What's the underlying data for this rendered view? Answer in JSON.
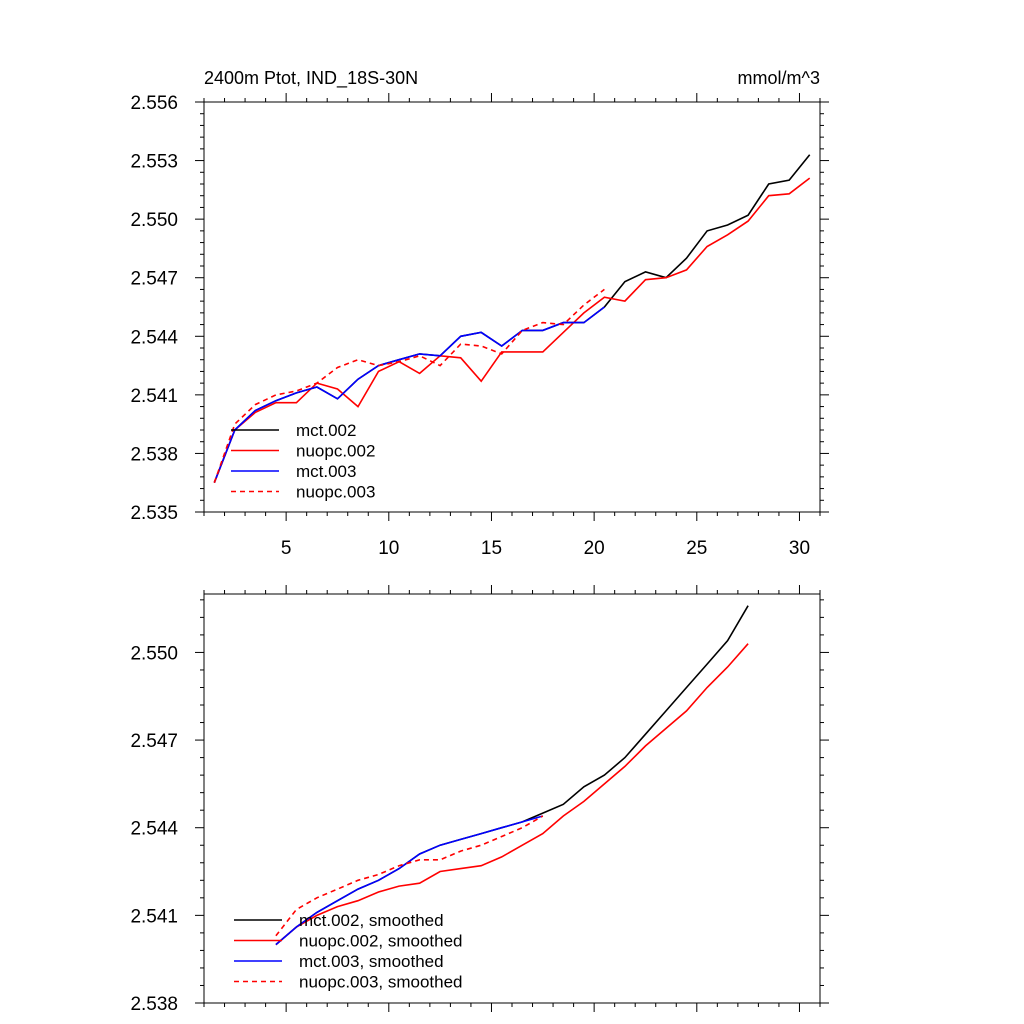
{
  "chart_data": [
    {
      "type": "line",
      "title": "2400m Ptot, IND_18S-30N",
      "units": "mmol/m^3",
      "xlabel": "",
      "ylabel": "",
      "xlim": [
        1,
        31
      ],
      "ylim": [
        2.535,
        2.556
      ],
      "xticks": [
        5,
        10,
        15,
        20,
        25,
        30
      ],
      "xtick_labels": [
        "5",
        "10",
        "15",
        "20",
        "25",
        "30"
      ],
      "yticks": [
        2.535,
        2.538,
        2.541,
        2.544,
        2.547,
        2.55,
        2.553,
        2.556
      ],
      "ytick_labels": [
        "2.535",
        "2.538",
        "2.541",
        "2.544",
        "2.547",
        "2.550",
        "2.553",
        "2.556"
      ],
      "legend_position": "bottom-left",
      "series": [
        {
          "name": "mct.002",
          "color": "#000000",
          "dash": "solid",
          "x": [
            1.5,
            2.5,
            3.5,
            4.5,
            5.5,
            6.5,
            7.5,
            8.5,
            9.5,
            10.5,
            11.5,
            12.5,
            13.5,
            14.5,
            15.5,
            16.5,
            17.5,
            18.5,
            19.5,
            20.5,
            21.5,
            22.5,
            23.5,
            24.5,
            25.5,
            26.5,
            27.5,
            28.5,
            29.5,
            30.5
          ],
          "values": [
            2.5365,
            2.5392,
            2.5402,
            2.5407,
            2.5411,
            2.5414,
            2.5408,
            2.5418,
            2.5425,
            2.5428,
            2.5431,
            2.543,
            2.544,
            2.5442,
            2.5435,
            2.5443,
            2.5443,
            2.5447,
            2.5447,
            2.5455,
            2.5468,
            2.5473,
            2.547,
            2.548,
            2.5494,
            2.5497,
            2.5502,
            2.5518,
            2.552,
            2.5533
          ]
        },
        {
          "name": "nuopc.002",
          "color": "#ff0000",
          "dash": "solid",
          "x": [
            1.5,
            2.5,
            3.5,
            4.5,
            5.5,
            6.5,
            7.5,
            8.5,
            9.5,
            10.5,
            11.5,
            12.5,
            13.5,
            14.5,
            15.5,
            16.5,
            17.5,
            18.5,
            19.5,
            20.5,
            21.5,
            22.5,
            23.5,
            24.5,
            25.5,
            26.5,
            27.5,
            28.5,
            29.5,
            30.5
          ],
          "values": [
            2.5365,
            2.5392,
            2.5401,
            2.5406,
            2.5406,
            2.5416,
            2.5413,
            2.5404,
            2.5422,
            2.5427,
            2.5421,
            2.543,
            2.5429,
            2.5417,
            2.5432,
            2.5432,
            2.5432,
            2.5442,
            2.5452,
            2.546,
            2.5458,
            2.5469,
            2.547,
            2.5474,
            2.5486,
            2.5492,
            2.5499,
            2.5512,
            2.5513,
            2.5521
          ]
        },
        {
          "name": "mct.003",
          "color": "#0000ff",
          "dash": "solid",
          "x": [
            1.5,
            2.5,
            3.5,
            4.5,
            5.5,
            6.5,
            7.5,
            8.5,
            9.5,
            10.5,
            11.5,
            12.5,
            13.5,
            14.5,
            15.5,
            16.5,
            17.5,
            18.5,
            19.5,
            20.5
          ],
          "values": [
            2.5365,
            2.5392,
            2.5402,
            2.5407,
            2.5411,
            2.5414,
            2.5408,
            2.5418,
            2.5425,
            2.5428,
            2.5431,
            2.543,
            2.544,
            2.5442,
            2.5435,
            2.5443,
            2.5443,
            2.5447,
            2.5447,
            2.5455
          ]
        },
        {
          "name": "nuopc.003",
          "color": "#ff0000",
          "dash": "dashed",
          "x": [
            1.5,
            2.5,
            3.5,
            4.5,
            5.5,
            6.5,
            7.5,
            8.5,
            9.5,
            10.5,
            11.5,
            12.5,
            13.5,
            14.5,
            15.5,
            16.5,
            17.5,
            18.5,
            19.5,
            20.5
          ],
          "values": [
            2.5365,
            2.5395,
            2.5405,
            2.541,
            2.5412,
            2.5416,
            2.5424,
            2.5428,
            2.5425,
            2.5427,
            2.543,
            2.5425,
            2.5436,
            2.5435,
            2.5431,
            2.5443,
            2.5447,
            2.5446,
            2.5456,
            2.5464
          ]
        }
      ]
    },
    {
      "type": "line",
      "title": "",
      "xlabel": "",
      "ylabel": "",
      "xlim": [
        1,
        31
      ],
      "ylim": [
        2.538,
        2.552
      ],
      "xticks": [
        5,
        10,
        15,
        20,
        25,
        30
      ],
      "xtick_labels": [
        "",
        "",
        "",
        "",
        "",
        ""
      ],
      "yticks": [
        2.538,
        2.541,
        2.544,
        2.547,
        2.55
      ],
      "ytick_labels": [
        "2.538",
        "2.541",
        "2.544",
        "2.547",
        "2.550"
      ],
      "legend_position": "bottom-left",
      "series": [
        {
          "name": "mct.002, smoothed",
          "color": "#000000",
          "dash": "solid",
          "x": [
            4.5,
            5.5,
            6.5,
            7.5,
            8.5,
            9.5,
            10.5,
            11.5,
            12.5,
            13.5,
            14.5,
            15.5,
            16.5,
            17.5,
            18.5,
            19.5,
            20.5,
            21.5,
            22.5,
            23.5,
            24.5,
            25.5,
            26.5,
            27.5
          ],
          "values": [
            2.54,
            2.5406,
            2.5411,
            2.5415,
            2.5419,
            2.5422,
            2.5426,
            2.5431,
            2.5434,
            2.5436,
            2.5438,
            2.544,
            2.5442,
            2.5445,
            2.5448,
            2.5454,
            2.5458,
            2.5464,
            2.5472,
            2.548,
            2.5488,
            2.5496,
            2.5504,
            2.5516
          ]
        },
        {
          "name": "nuopc.002, smoothed",
          "color": "#ff0000",
          "dash": "solid",
          "x": [
            4.5,
            5.5,
            6.5,
            7.5,
            8.5,
            9.5,
            10.5,
            11.5,
            12.5,
            13.5,
            14.5,
            15.5,
            16.5,
            17.5,
            18.5,
            19.5,
            20.5,
            21.5,
            22.5,
            23.5,
            24.5,
            25.5,
            26.5,
            27.5
          ],
          "values": [
            2.54,
            2.5406,
            2.541,
            2.5413,
            2.5415,
            2.5418,
            2.542,
            2.5421,
            2.5425,
            2.5426,
            2.5427,
            2.543,
            2.5434,
            2.5438,
            2.5444,
            2.5449,
            2.5455,
            2.5461,
            2.5468,
            2.5474,
            2.548,
            2.5488,
            2.5495,
            2.5503
          ]
        },
        {
          "name": "mct.003, smoothed",
          "color": "#0000ff",
          "dash": "solid",
          "x": [
            4.5,
            5.5,
            6.5,
            7.5,
            8.5,
            9.5,
            10.5,
            11.5,
            12.5,
            13.5,
            14.5,
            15.5,
            16.5,
            17.5
          ],
          "values": [
            2.54,
            2.5406,
            2.5411,
            2.5415,
            2.5419,
            2.5422,
            2.5426,
            2.5431,
            2.5434,
            2.5436,
            2.5438,
            2.544,
            2.5442,
            2.5444
          ]
        },
        {
          "name": "nuopc.003, smoothed",
          "color": "#ff0000",
          "dash": "dashed",
          "x": [
            4.5,
            5.5,
            6.5,
            7.5,
            8.5,
            9.5,
            10.5,
            11.5,
            12.5,
            13.5,
            14.5,
            15.5,
            16.5,
            17.5
          ],
          "values": [
            2.5403,
            2.5412,
            2.5416,
            2.5419,
            2.5422,
            2.5424,
            2.5427,
            2.5429,
            2.5429,
            2.5432,
            2.5434,
            2.5437,
            2.544,
            2.5444
          ]
        }
      ]
    }
  ]
}
